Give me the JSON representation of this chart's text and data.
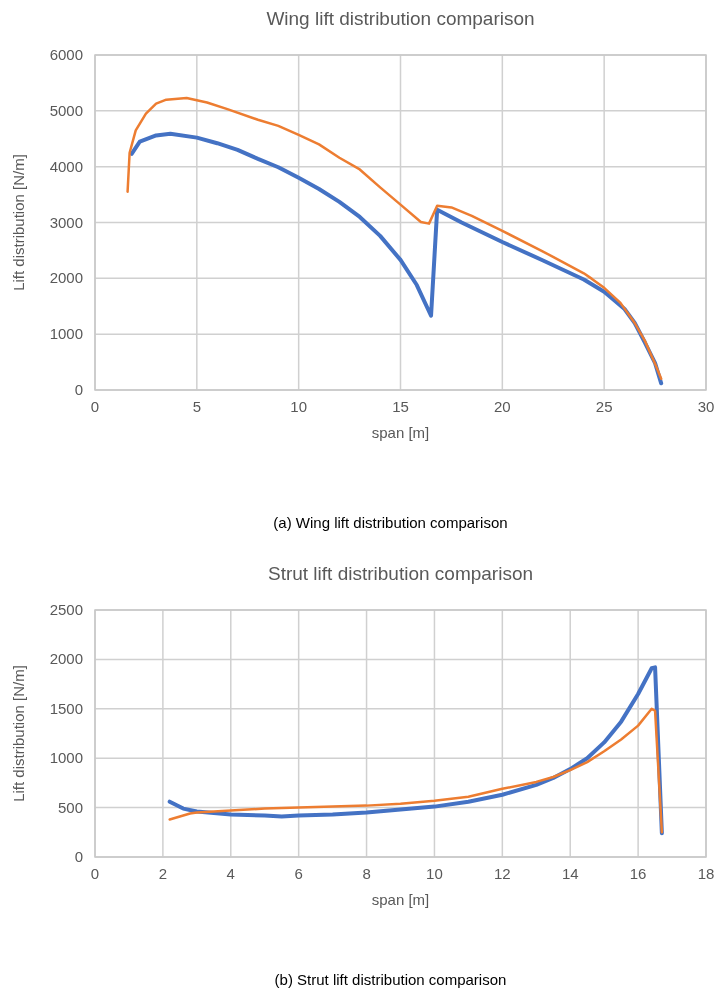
{
  "chart_data": [
    {
      "type": "line",
      "title": "Wing lift distribution comparison",
      "xlabel": "span [m]",
      "ylabel": "Lift distribution [N/m]",
      "xlim": [
        0,
        30
      ],
      "xticks": [
        0,
        5,
        10,
        15,
        20,
        25,
        30
      ],
      "ylim": [
        0,
        6000
      ],
      "yticks": [
        0,
        1000,
        2000,
        3000,
        4000,
        5000,
        6000
      ],
      "grid": true,
      "annotations": [
        "(a) Wing lift distribution comparison"
      ],
      "series": [
        {
          "color": "#4472c4",
          "x": [
            1.8,
            2.2,
            3,
            3.7,
            5,
            6,
            7,
            8,
            9,
            10,
            11,
            12,
            13,
            14,
            15,
            15.8,
            16.5,
            16.8,
            18,
            20,
            22,
            24,
            25,
            26,
            26.5,
            27,
            27.5,
            27.8
          ],
          "values": [
            4230,
            4450,
            4560,
            4590,
            4520,
            4420,
            4300,
            4140,
            3990,
            3800,
            3600,
            3370,
            3100,
            2760,
            2330,
            1880,
            1330,
            3230,
            3000,
            2650,
            2320,
            1980,
            1760,
            1450,
            1200,
            850,
            480,
            120
          ]
        },
        {
          "color": "#ed7d31",
          "x": [
            1.6,
            1.7,
            2,
            2.5,
            3,
            3.5,
            4.5,
            5.5,
            6.5,
            8,
            9,
            10,
            11,
            12,
            13,
            14,
            15,
            16,
            16.4,
            16.8,
            17.5,
            18.5,
            20,
            22,
            24,
            24.4,
            25,
            25.8,
            26.5,
            27,
            27.5,
            27.8
          ],
          "values": [
            3550,
            4250,
            4650,
            4950,
            5130,
            5200,
            5230,
            5150,
            5030,
            4840,
            4730,
            4570,
            4400,
            4160,
            3950,
            3630,
            3320,
            3010,
            2980,
            3300,
            3270,
            3120,
            2850,
            2480,
            2090,
            1990,
            1830,
            1560,
            1200,
            880,
            470,
            200
          ]
        }
      ]
    },
    {
      "type": "line",
      "title": "Strut lift distribution comparison",
      "xlabel": "span [m]",
      "ylabel": "Lift distribution [N/m]",
      "xlim": [
        0,
        18
      ],
      "xticks": [
        0,
        2,
        4,
        6,
        8,
        10,
        12,
        14,
        16,
        18
      ],
      "ylim": [
        0,
        2500
      ],
      "yticks": [
        0,
        500,
        1000,
        1500,
        2000,
        2500
      ],
      "grid": true,
      "annotations": [
        "(b) Strut lift distribution comparison"
      ],
      "series": [
        {
          "color": "#4472c4",
          "x": [
            2.2,
            2.6,
            3,
            4,
            5,
            5.5,
            6,
            7,
            8,
            9,
            10,
            11,
            12,
            13,
            13.5,
            14,
            14.5,
            15,
            15.5,
            16,
            16.4,
            16.5,
            16.7
          ],
          "values": [
            560,
            490,
            460,
            430,
            420,
            410,
            420,
            430,
            450,
            480,
            510,
            560,
            630,
            730,
            800,
            890,
            1000,
            1160,
            1370,
            1650,
            1910,
            1920,
            240
          ]
        },
        {
          "color": "#ed7d31",
          "x": [
            2.2,
            2.5,
            2.8,
            3,
            4,
            5,
            6,
            7,
            8,
            9,
            10,
            11,
            12,
            13,
            13.5,
            14,
            14.5,
            15,
            15.5,
            16,
            16.4,
            16.5,
            16.7
          ],
          "values": [
            380,
            410,
            440,
            450,
            470,
            490,
            500,
            510,
            520,
            540,
            570,
            610,
            690,
            760,
            810,
            880,
            960,
            1070,
            1190,
            1330,
            1500,
            1480,
            250
          ]
        }
      ]
    }
  ]
}
